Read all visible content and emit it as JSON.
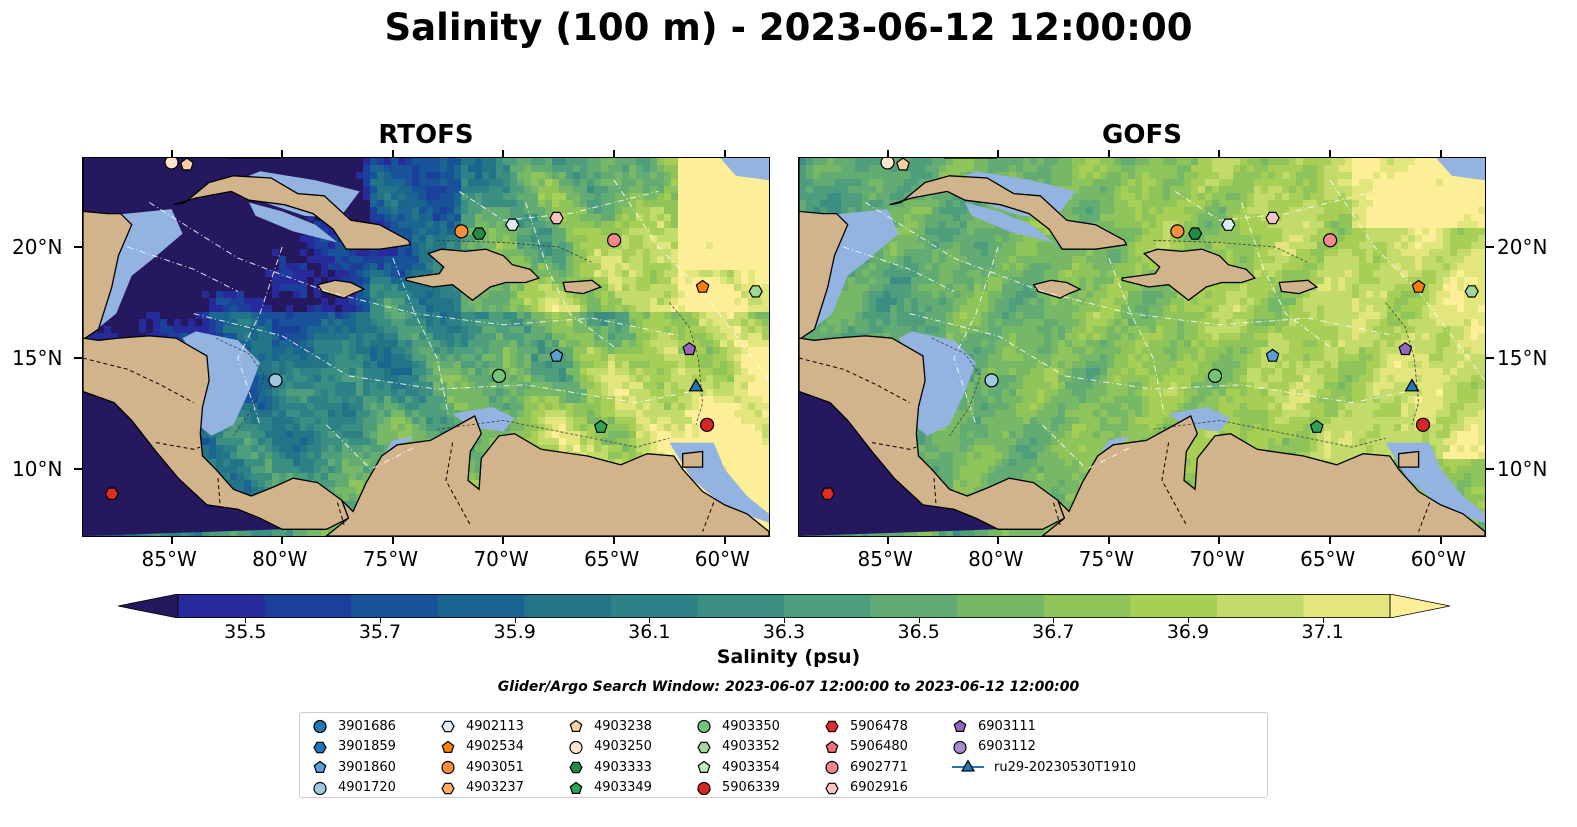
{
  "title": "Salinity (100 m) - 2023-06-12 12:00:00",
  "panels": [
    {
      "id": "rtofs",
      "title": "RTOFS"
    },
    {
      "id": "gofs",
      "title": "GOFS"
    }
  ],
  "map_extent": {
    "lon_min": -89,
    "lon_max": -58,
    "lat_min": 7,
    "lat_max": 24
  },
  "lon_ticks": [
    {
      "lon": -85,
      "label": "85°W"
    },
    {
      "lon": -80,
      "label": "80°W"
    },
    {
      "lon": -75,
      "label": "75°W"
    },
    {
      "lon": -70,
      "label": "70°W"
    },
    {
      "lon": -65,
      "label": "65°W"
    },
    {
      "lon": -60,
      "label": "60°W"
    }
  ],
  "lat_ticks": [
    {
      "lat": 20,
      "label": "20°N"
    },
    {
      "lat": 15,
      "label": "15°N"
    },
    {
      "lat": 10,
      "label": "10°N"
    }
  ],
  "colors": {
    "land": "#d2b48c",
    "shelf": "#93b3e0",
    "colormap": [
      "#26185f",
      "#262a9a",
      "#1d3f9c",
      "#18539a",
      "#1a6690",
      "#237487",
      "#2c8286",
      "#3a8f82",
      "#4e9d7c",
      "#62ab72",
      "#77b866",
      "#8fc45a",
      "#a8cf55",
      "#c3db6b",
      "#e2e67c",
      "#fdee98"
    ]
  },
  "colorbar": {
    "label": "Salinity (psu)",
    "min": 35.4,
    "max": 37.2,
    "extend": "both",
    "ticks": [
      "35.5",
      "35.7",
      "35.9",
      "36.1",
      "36.3",
      "36.5",
      "36.7",
      "36.9",
      "37.1"
    ]
  },
  "search_window": "Glider/Argo Search Window: 2023-06-07 12:00:00 to 2023-06-12 12:00:00",
  "floats": [
    {
      "id": "3901686",
      "color": "#1f77b4",
      "marker": "circle"
    },
    {
      "id": "3901859",
      "color": "#1f77b4",
      "marker": "hexagon"
    },
    {
      "id": "3901860",
      "color": "#5a9fd4",
      "marker": "pentagon",
      "lon": -67.6,
      "lat": 15.1
    },
    {
      "id": "4901720",
      "color": "#9ecae1",
      "marker": "circle",
      "lon": -80.3,
      "lat": 14.0
    },
    {
      "id": "4902113",
      "color": "#deebf7",
      "marker": "hexagon",
      "lon": -69.6,
      "lat": 21.0
    },
    {
      "id": "4902534",
      "color": "#ff7f0e",
      "marker": "pentagon",
      "lon": -61.0,
      "lat": 18.2
    },
    {
      "id": "4903051",
      "color": "#fd8d3c",
      "marker": "circle",
      "lon": -71.9,
      "lat": 20.7
    },
    {
      "id": "4903237",
      "color": "#fdae6b",
      "marker": "hexagon"
    },
    {
      "id": "4903238",
      "color": "#fdd0a2",
      "marker": "pentagon",
      "lon": -84.3,
      "lat": 23.7
    },
    {
      "id": "4903250",
      "color": "#ffe6cc",
      "marker": "circle",
      "lon": -85.0,
      "lat": 23.8
    },
    {
      "id": "4903333",
      "color": "#238b45",
      "marker": "hexagon",
      "lon": -71.1,
      "lat": 20.6
    },
    {
      "id": "4903349",
      "color": "#31a354",
      "marker": "pentagon",
      "lon": -65.6,
      "lat": 11.9
    },
    {
      "id": "4903350",
      "color": "#74c476",
      "marker": "circle",
      "lon": -70.2,
      "lat": 14.2
    },
    {
      "id": "4903352",
      "color": "#a1d99b",
      "marker": "hexagon",
      "lon": -58.6,
      "lat": 18.0
    },
    {
      "id": "4903354",
      "color": "#c7e9c0",
      "marker": "pentagon"
    },
    {
      "id": "5906339",
      "color": "#d62728",
      "marker": "circle",
      "lon": -60.8,
      "lat": 12.0
    },
    {
      "id": "5906478",
      "color": "#de2d26",
      "marker": "hexagon",
      "lon": -87.7,
      "lat": 8.9
    },
    {
      "id": "5906480",
      "color": "#f0707a",
      "marker": "pentagon"
    },
    {
      "id": "6902771",
      "color": "#f4888e",
      "marker": "circle",
      "lon": -65.0,
      "lat": 20.3
    },
    {
      "id": "6902916",
      "color": "#fbc4c4",
      "marker": "hexagon",
      "lon": -67.6,
      "lat": 21.3
    },
    {
      "id": "6903111",
      "color": "#9467bd",
      "marker": "pentagon",
      "lon": -61.6,
      "lat": 15.4
    },
    {
      "id": "6903112",
      "color": "#a98bd0",
      "marker": "circle"
    },
    {
      "id": "ru29-20230530T1910",
      "color": "#1f77b4",
      "marker": "triangle",
      "line": true,
      "lon": -61.3,
      "lat": 13.7
    }
  ]
}
